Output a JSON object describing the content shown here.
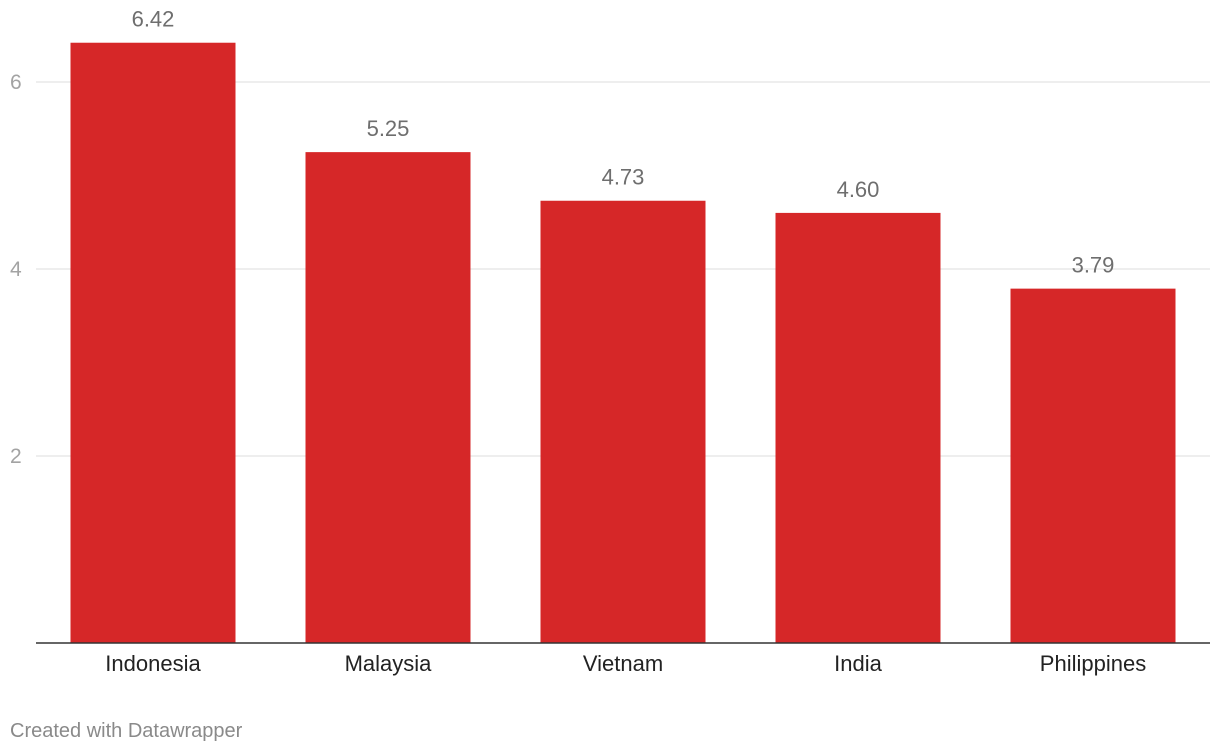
{
  "chart_data": {
    "type": "bar",
    "categories": [
      "Indonesia",
      "Malaysia",
      "Vietnam",
      "India",
      "Philippines"
    ],
    "values": [
      6.42,
      5.25,
      4.73,
      4.6,
      3.79
    ],
    "value_labels": [
      "6.42",
      "5.25",
      "4.73",
      "4.60",
      "3.79"
    ],
    "yticks": [
      2,
      4,
      6
    ],
    "ylim": [
      0,
      6.4
    ],
    "grid": true,
    "bar_color": "#d62728",
    "grid_color": "#dcdcdc"
  },
  "footer": {
    "credit": "Created with Datawrapper"
  }
}
